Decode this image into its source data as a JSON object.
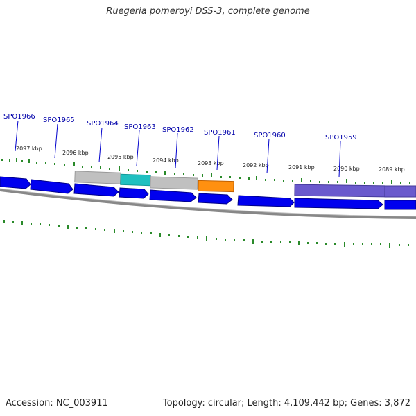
{
  "title": "Ruegeria pomeroyi DSS-3, complete genome",
  "footer": {
    "accession": "Accession: NC_003911",
    "summary": "Topology: circular; Length: 4,109,442 bp; Genes: 3,872"
  },
  "scale_labels": [
    "2097 kbp",
    "2096 kbp",
    "2095 kbp",
    "2094 kbp",
    "2093 kbp",
    "2092 kbp",
    "2091 kbp",
    "2090 kbp",
    "2089 kbp"
  ],
  "gene_labels": [
    "SPO1966",
    "SPO1965",
    "SPO1964",
    "SPO1963",
    "SPO1962",
    "SPO1961",
    "SPO1960",
    "SPO1959"
  ],
  "colors": {
    "gene_blue": "#0000ee",
    "tick_green": "#2a8a2a",
    "backbone": "#888888",
    "feature_gray": "#c0c0c0",
    "feature_cyan": "#20c0c0",
    "feature_orange": "#ff9010",
    "feature_purple": "#6a5acd",
    "label_blue": "#0000aa"
  }
}
